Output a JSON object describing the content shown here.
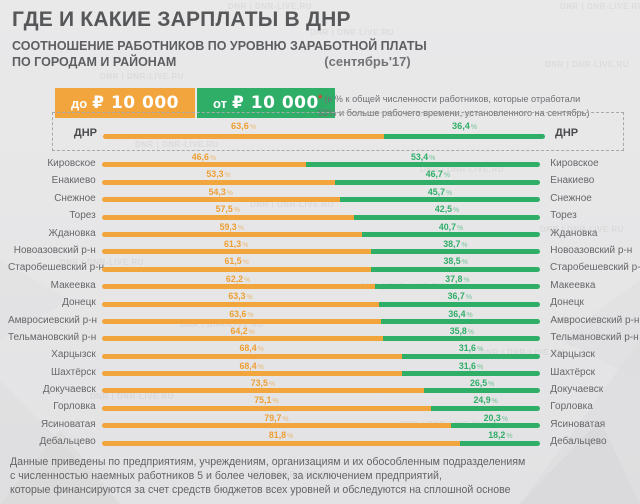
{
  "header": {
    "title": "ГДЕ И КАКИЕ ЗАРПЛАТЫ В ДНР",
    "subtitle_line1": "СООТНОШЕНИЕ РАБОТНИКОВ ПО УРОВНЮ ЗАРАБОТНОЙ ПЛАТЫ",
    "subtitle_line2": "ПО ГОРОДАМ И РАЙОНАМ",
    "date_label": "(сентябрь'17)"
  },
  "legend": {
    "below": {
      "prefix": "до",
      "amount": "₽ 10 000",
      "color": "#f2a43d"
    },
    "above": {
      "prefix": "от",
      "amount": "₽ 10 000",
      "color": "#2fae68"
    }
  },
  "note": {
    "asterisk": "*",
    "line1": "(в % к общей численности работников, которые отработали",
    "line2": "50% и больше рабочего времени, установленного на сентябрь)"
  },
  "chart_data": {
    "type": "bar",
    "orientation": "horizontal-diverging",
    "value_suffix": "%",
    "xlim": [
      0,
      100
    ],
    "categories": [
      "ДНР",
      "Кировское",
      "Енакиево",
      "Снежное",
      "Торез",
      "Ждановка",
      "Новоазовский р-н",
      "Старобешевский р-н",
      "Макеевка",
      "Донецк",
      "Амвросиевский р-н",
      "Тельмановский р-н",
      "Харцызск",
      "Шахтёрск",
      "Докучаевск",
      "Горловка",
      "Ясиноватая",
      "Дебальцево"
    ],
    "series": [
      {
        "name": "до ₽ 10 000",
        "color": "#f2a43d",
        "label_color": "#ee9f33",
        "values": [
          63.6,
          46.6,
          53.3,
          54.3,
          57.5,
          59.3,
          61.3,
          61.5,
          62.2,
          63.3,
          63.6,
          64.2,
          68.4,
          68.4,
          73.5,
          75.1,
          79.7,
          81.8
        ]
      },
      {
        "name": "от ₽ 10 000",
        "color": "#2fae68",
        "label_color": "#2fae68",
        "values": [
          36.4,
          53.4,
          46.7,
          45.7,
          42.5,
          40.7,
          38.7,
          38.5,
          37.8,
          36.7,
          36.4,
          35.8,
          31.6,
          31.6,
          26.5,
          24.9,
          20.3,
          18.2
        ]
      }
    ],
    "legend_position": "top-left",
    "grid": false
  },
  "footer": {
    "line1": "Данные приведены по предприятиям, учреждениям, организациям и их обособленным подразделениям",
    "line2": "с численностью наемных работников 5 и более человек, за исключением предприятий,",
    "line3": "которые финансируются за счет средств  бюджетов всех уровней и обследуются на сплошной основе"
  },
  "watermark": {
    "text": "DNR | DNR-LIVE.RU"
  }
}
